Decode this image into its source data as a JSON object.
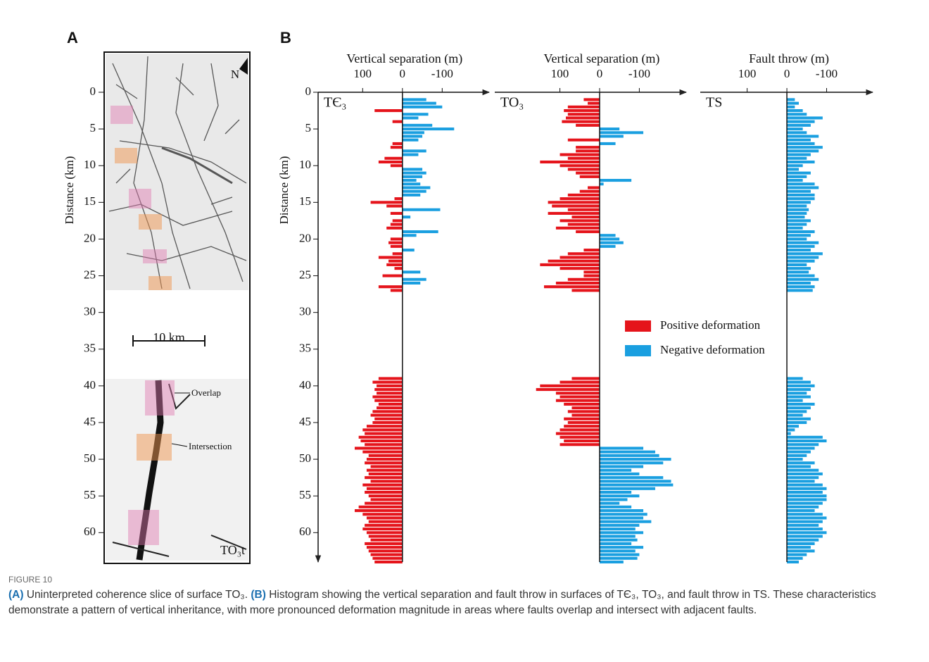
{
  "figure": {
    "number": "FIGURE 10",
    "caption": {
      "a_label": "(A)",
      "a_text": "Uninterpreted coherence slice of surface TO₃.",
      "b_label": "(B)",
      "b_text": "Histogram showing the vertical separation and fault throw in surfaces of TЄ₃, TO₃, and fault throw in TS. These characteristics demonstrate a pattern of vertical inheritance, with more pronounced deformation magnitude in areas where faults overlap and intersect with adjacent faults."
    }
  },
  "panel_a": {
    "label": "A",
    "ylabel": "Distance (km)",
    "ylim": [
      0,
      64
    ],
    "yticks": [
      0,
      5,
      10,
      15,
      20,
      25,
      30,
      35,
      40,
      45,
      50,
      55,
      60
    ],
    "north": "N",
    "scale_bar": "10 km",
    "annotations": [
      "Overlap",
      "Intersection"
    ],
    "surface": "TO₃t"
  },
  "chart_data": {
    "type": "bar",
    "orientation": "horizontal",
    "label": "B",
    "ylabel": "Distance (km)",
    "ylim": [
      0,
      64
    ],
    "yticks": [
      0,
      5,
      10,
      15,
      20,
      25,
      30,
      35,
      40,
      45,
      50,
      55,
      60
    ],
    "legend": [
      {
        "name": "Positive deformation",
        "color": "#e5141b"
      },
      {
        "name": "Negative deformation",
        "color": "#1a9fe0"
      }
    ],
    "distance": [
      1,
      1.5,
      2,
      2.5,
      3,
      3.5,
      4,
      4.5,
      5,
      5.5,
      6,
      6.5,
      7,
      7.5,
      8,
      8.5,
      9,
      9.5,
      10,
      10.5,
      11,
      11.5,
      12,
      12.5,
      13,
      13.5,
      14,
      14.5,
      15,
      15.5,
      16,
      16.5,
      17,
      17.5,
      18,
      18.5,
      19,
      19.5,
      20,
      20.5,
      21,
      21.5,
      22,
      22.5,
      23,
      23.5,
      24,
      24.5,
      25,
      25.5,
      26,
      26.5,
      27,
      39,
      39.5,
      40,
      40.5,
      41,
      41.5,
      42,
      42.5,
      43,
      43.5,
      44,
      44.5,
      45,
      45.5,
      46,
      46.5,
      47,
      47.5,
      48,
      48.5,
      49,
      49.5,
      50,
      50.5,
      51,
      51.5,
      52,
      52.5,
      53,
      53.5,
      54,
      54.5,
      55,
      55.5,
      56,
      56.5,
      57,
      57.5,
      58,
      58.5,
      59,
      59.5,
      60,
      60.5,
      61,
      61.5,
      62,
      62.5,
      63,
      63.5,
      64
    ],
    "panels": [
      {
        "title": "Vertical separation (m)",
        "label": "TЄ₃",
        "xlim": [
          212,
          -218
        ],
        "xticks": [
          100,
          0,
          -100
        ],
        "values": [
          -60,
          -85,
          -100,
          70,
          -65,
          -40,
          25,
          -75,
          -130,
          -55,
          -50,
          -40,
          25,
          30,
          -60,
          -40,
          45,
          60,
          30,
          -50,
          -60,
          -50,
          -35,
          -45,
          -70,
          -60,
          -45,
          20,
          80,
          40,
          -95,
          30,
          -20,
          25,
          30,
          40,
          -90,
          -35,
          30,
          35,
          30,
          -30,
          25,
          60,
          35,
          40,
          20,
          -45,
          50,
          -60,
          -45,
          60,
          30,
          60,
          75,
          65,
          70,
          65,
          75,
          70,
          60,
          65,
          75,
          80,
          70,
          75,
          90,
          100,
          95,
          110,
          105,
          95,
          120,
          100,
          85,
          90,
          95,
          80,
          90,
          85,
          95,
          80,
          100,
          90,
          95,
          85,
          80,
          95,
          110,
          120,
          100,
          90,
          85,
          95,
          100,
          90,
          85,
          80,
          95,
          90,
          85,
          80,
          75,
          70
        ]
      },
      {
        "title": "Vertical separation (m)",
        "label": "TO₃",
        "xlim": [
          264,
          -218
        ],
        "xticks": [
          100,
          0,
          -100
        ],
        "values": [
          40,
          30,
          80,
          90,
          80,
          85,
          95,
          60,
          -50,
          -110,
          -60,
          80,
          -40,
          60,
          60,
          100,
          80,
          150,
          100,
          80,
          60,
          50,
          -80,
          -10,
          30,
          50,
          80,
          100,
          130,
          120,
          80,
          130,
          70,
          100,
          80,
          110,
          60,
          -40,
          -50,
          -60,
          -40,
          40,
          80,
          100,
          130,
          150,
          100,
          40,
          40,
          80,
          110,
          140,
          70,
          70,
          100,
          150,
          160,
          110,
          100,
          110,
          90,
          70,
          80,
          70,
          90,
          80,
          90,
          100,
          110,
          100,
          90,
          100,
          -110,
          -140,
          -150,
          -180,
          -160,
          -110,
          -80,
          -100,
          -160,
          -180,
          -185,
          -140,
          -80,
          -100,
          -70,
          -50,
          -80,
          -110,
          -120,
          -110,
          -130,
          -100,
          -90,
          -110,
          -90,
          -95,
          -80,
          -110,
          -90,
          -100,
          -95,
          -60
        ]
      },
      {
        "title": "Fault throw (m)",
        "label": "TS",
        "xlim": [
          218,
          -216
        ],
        "xticks": [
          100,
          0,
          -100
        ],
        "values": [
          -20,
          -30,
          -20,
          -40,
          -50,
          -90,
          -70,
          -60,
          -40,
          -50,
          -80,
          -60,
          -70,
          -90,
          -80,
          -60,
          -50,
          -70,
          -40,
          -30,
          -60,
          -50,
          -40,
          -70,
          -80,
          -60,
          -70,
          -70,
          -60,
          -50,
          -55,
          -50,
          -45,
          -60,
          -50,
          -40,
          -70,
          -60,
          -50,
          -80,
          -70,
          -60,
          -90,
          -80,
          -70,
          -50,
          -60,
          -55,
          -70,
          -80,
          -60,
          -70,
          -65,
          -40,
          -60,
          -70,
          -60,
          -50,
          -60,
          -40,
          -70,
          -60,
          -50,
          -40,
          -60,
          -50,
          -30,
          -20,
          -10,
          -90,
          -100,
          -80,
          -70,
          -60,
          -50,
          -40,
          -70,
          -60,
          -80,
          -90,
          -80,
          -70,
          -90,
          -100,
          -90,
          -100,
          -100,
          -90,
          -80,
          -70,
          -90,
          -100,
          -90,
          -80,
          -90,
          -100,
          -90,
          -80,
          -70,
          -60,
          -70,
          -50,
          -40,
          -30
        ]
      }
    ]
  }
}
